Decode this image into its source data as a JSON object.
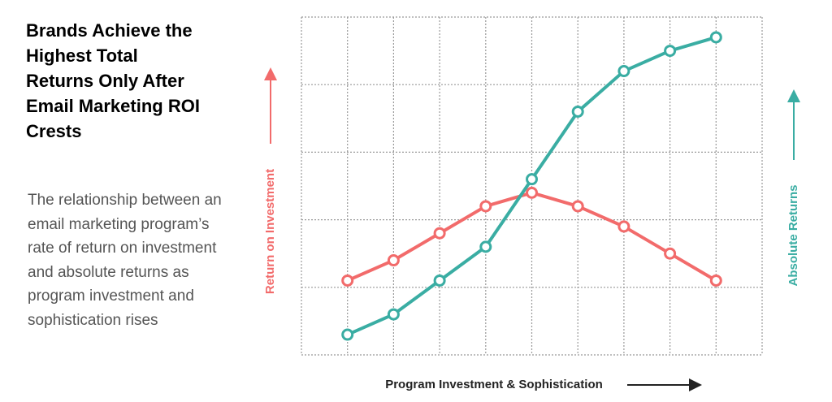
{
  "chart_data": {
    "type": "line",
    "title": "Brands Achieve the Highest Total Returns Only After Email Marketing ROI Crests",
    "subtitle": "The relationship between an email marketing program’s rate of return on investment and absolute returns as program investment and sophistication rises",
    "xlabel": "Program Investment & Sophistication",
    "x": [
      1,
      2,
      3,
      4,
      5,
      6,
      7,
      8,
      9
    ],
    "xlim": [
      0,
      10
    ],
    "xticks": [
      0,
      1,
      2,
      3,
      4,
      5,
      6,
      7,
      8,
      9,
      10
    ],
    "ylim": [
      0,
      5
    ],
    "yticks": [
      0,
      1,
      2,
      3,
      4,
      5
    ],
    "grid": true,
    "series": [
      {
        "name": "Return on Investment",
        "color": "#f26b6b",
        "values": [
          1.1,
          1.4,
          1.8,
          2.2,
          2.4,
          2.2,
          1.9,
          1.5,
          1.1
        ]
      },
      {
        "name": "Absolute Returns",
        "color": "#3aada3",
        "values": [
          0.3,
          0.6,
          1.1,
          1.6,
          2.6,
          3.6,
          4.2,
          4.5,
          4.7
        ]
      }
    ]
  }
}
